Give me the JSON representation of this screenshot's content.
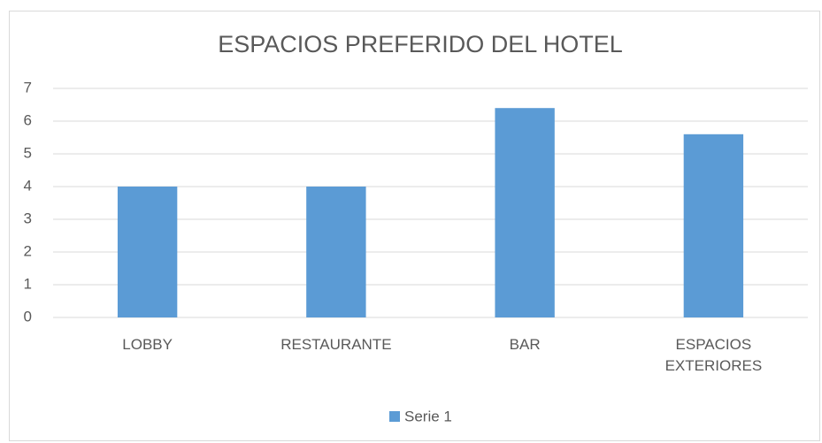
{
  "chart_data": {
    "type": "bar",
    "title": "ESPACIOS PREFERIDO DEL HOTEL",
    "categories": [
      "LOBBY",
      "RESTAURANTE",
      "BAR",
      "ESPACIOS EXTERIORES"
    ],
    "series": [
      {
        "name": "Serie 1",
        "color": "#5b9bd5",
        "values": [
          4,
          4,
          6.4,
          5.6
        ]
      }
    ],
    "ylim": [
      0,
      7
    ],
    "yticks": [
      0,
      1,
      2,
      3,
      4,
      5,
      6,
      7
    ],
    "grid": true,
    "legend": "bottom"
  }
}
